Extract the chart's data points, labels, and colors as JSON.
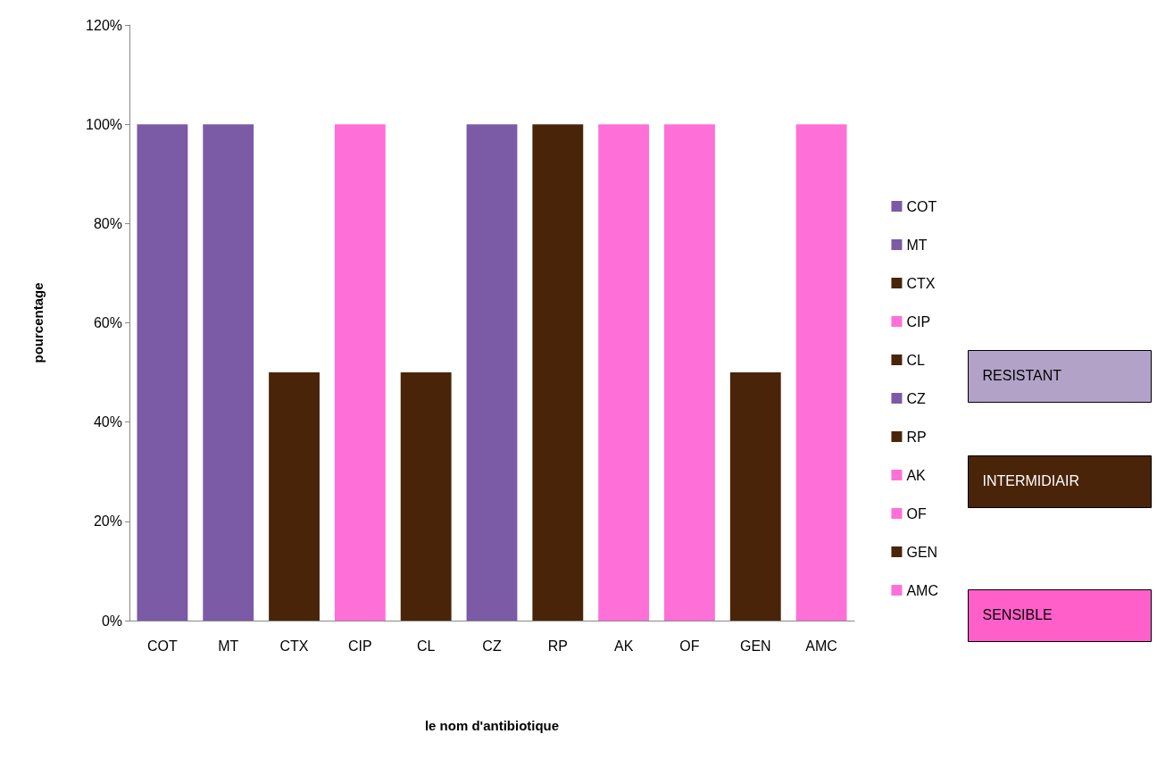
{
  "chart_data": {
    "type": "bar",
    "xlabel": "le nom d'antibiotique",
    "ylabel": "pourcentage",
    "stacked": true,
    "categories": [
      "COT",
      "MT",
      "CTX",
      "CIP",
      "CL",
      "CZ",
      "RP",
      "AK",
      "OF",
      "GEN",
      "AMC"
    ],
    "series": [
      {
        "name": "COT",
        "color": "#7b5aa6",
        "values": [
          100,
          null,
          null,
          null,
          null,
          null,
          null,
          null,
          null,
          null,
          null
        ]
      },
      {
        "name": "MT",
        "color": "#7b5aa6",
        "values": [
          null,
          100,
          null,
          null,
          null,
          null,
          null,
          null,
          null,
          null,
          null
        ]
      },
      {
        "name": "CTX",
        "color": "#4a2408",
        "values": [
          null,
          null,
          50,
          null,
          null,
          null,
          null,
          null,
          null,
          null,
          null
        ]
      },
      {
        "name": "CIP",
        "color": "#ff6fd8",
        "values": [
          null,
          null,
          null,
          100,
          null,
          null,
          null,
          null,
          null,
          null,
          null
        ]
      },
      {
        "name": "CL",
        "color": "#4a2408",
        "values": [
          null,
          null,
          null,
          null,
          50,
          null,
          null,
          null,
          null,
          null,
          null
        ]
      },
      {
        "name": "CZ",
        "color": "#7b5aa6",
        "values": [
          null,
          null,
          null,
          null,
          null,
          100,
          null,
          null,
          null,
          null,
          null
        ]
      },
      {
        "name": "RP",
        "color": "#4a2408",
        "values": [
          null,
          null,
          null,
          null,
          null,
          null,
          100,
          null,
          null,
          null,
          null
        ]
      },
      {
        "name": "AK",
        "color": "#ff6fd8",
        "values": [
          null,
          null,
          null,
          null,
          null,
          null,
          null,
          100,
          null,
          null,
          null
        ]
      },
      {
        "name": "OF",
        "color": "#ff6fd8",
        "values": [
          null,
          null,
          null,
          null,
          null,
          null,
          null,
          null,
          100,
          null,
          null
        ]
      },
      {
        "name": "GEN",
        "color": "#4a2408",
        "values": [
          null,
          null,
          null,
          null,
          null,
          null,
          null,
          null,
          null,
          50,
          null
        ]
      },
      {
        "name": "AMC",
        "color": "#ff6fd8",
        "values": [
          null,
          null,
          null,
          null,
          null,
          null,
          null,
          null,
          null,
          null,
          100
        ]
      }
    ],
    "ylim": [
      0,
      120
    ],
    "yticks": [
      {
        "value": 0,
        "label": "0%"
      },
      {
        "value": 20,
        "label": "20%"
      },
      {
        "value": 40,
        "label": "40%"
      },
      {
        "value": 60,
        "label": "60%"
      },
      {
        "value": 80,
        "label": "80%"
      },
      {
        "value": 100,
        "label": "100%"
      },
      {
        "value": 120,
        "label": "120%"
      }
    ],
    "grid": false,
    "legend": "right",
    "annotations": [
      "RESISTANT",
      "INTERMIDIAIR",
      "SENSIBLE"
    ]
  }
}
